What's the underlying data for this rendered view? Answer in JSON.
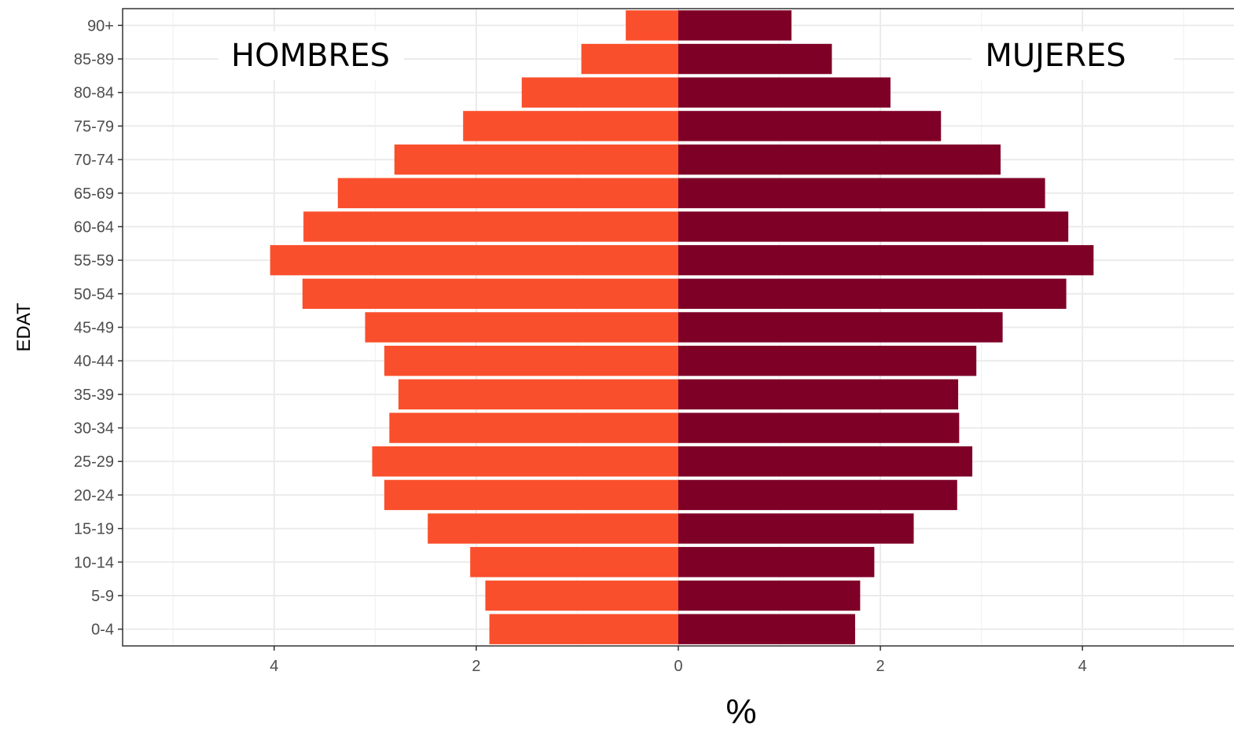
{
  "chart_data": {
    "type": "bar",
    "orientation": "horizontal",
    "subtype": "population-pyramid",
    "categories": [
      "0-4",
      "5-9",
      "10-14",
      "15-19",
      "20-24",
      "25-29",
      "30-34",
      "35-39",
      "40-44",
      "45-49",
      "50-54",
      "55-59",
      "60-64",
      "65-69",
      "70-74",
      "75-79",
      "80-84",
      "85-89",
      "90+"
    ],
    "series": [
      {
        "name": "HOMBRES",
        "side": "left",
        "color": "#fa4f2c",
        "values": [
          1.87,
          1.91,
          2.06,
          2.48,
          2.91,
          3.03,
          2.86,
          2.77,
          2.91,
          3.1,
          3.72,
          4.04,
          3.71,
          3.37,
          2.81,
          2.13,
          1.55,
          0.96,
          0.52
        ]
      },
      {
        "name": "MUJERES",
        "side": "right",
        "color": "#7f0027",
        "values": [
          1.75,
          1.8,
          1.94,
          2.33,
          2.76,
          2.91,
          2.78,
          2.77,
          2.95,
          3.21,
          3.84,
          4.11,
          3.86,
          3.63,
          3.19,
          2.6,
          2.1,
          1.52,
          1.12
        ]
      }
    ],
    "xlabel": "%",
    "ylabel": "EDAT",
    "xlim": [
      -5.5,
      5.5
    ],
    "xticks": [
      -4,
      -2,
      0,
      2,
      4
    ],
    "xtick_labels": [
      "4",
      "2",
      "0",
      "2",
      "4"
    ],
    "grid": true,
    "theme": "bw",
    "panel_labels": {
      "left": "HOMBRES",
      "right": "MUJERES"
    },
    "label_positions": {
      "left": "top-left",
      "right": "top-right"
    }
  }
}
